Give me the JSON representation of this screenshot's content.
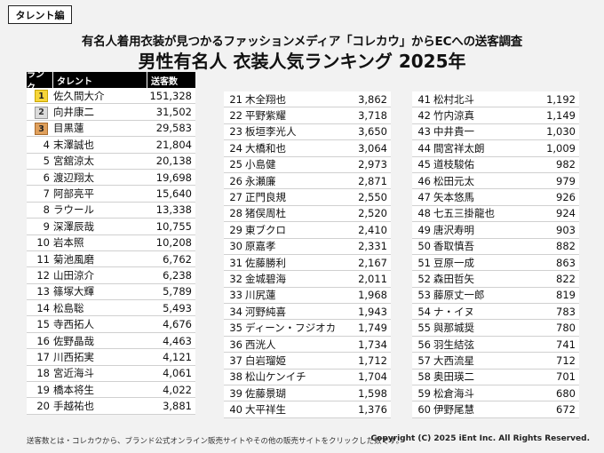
{
  "tag": "タレント編",
  "subtitle": "有名人着用衣装が見つかるファッションメディア「コレカウ」からECへの送客調査",
  "title": "男性有名人 衣装人気ランキング 2025年",
  "header": {
    "rank": "ランク",
    "name": "タレント",
    "count": "送客数"
  },
  "col1": [
    {
      "rank": "1",
      "name": "佐久間大介",
      "count": "151,328"
    },
    {
      "rank": "2",
      "name": "向井康二",
      "count": "31,502"
    },
    {
      "rank": "3",
      "name": "目黒蓮",
      "count": "29,583"
    },
    {
      "rank": "4",
      "name": "末澤誠也",
      "count": "21,804"
    },
    {
      "rank": "5",
      "name": "宮舘涼太",
      "count": "20,138"
    },
    {
      "rank": "6",
      "name": "渡辺翔太",
      "count": "19,698"
    },
    {
      "rank": "7",
      "name": "阿部亮平",
      "count": "15,640"
    },
    {
      "rank": "8",
      "name": "ラウール",
      "count": "13,338"
    },
    {
      "rank": "9",
      "name": "深澤辰哉",
      "count": "10,755"
    },
    {
      "rank": "10",
      "name": "岩本照",
      "count": "10,208"
    },
    {
      "rank": "11",
      "name": "菊池風磨",
      "count": "6,762"
    },
    {
      "rank": "12",
      "name": "山田涼介",
      "count": "6,238"
    },
    {
      "rank": "13",
      "name": "篠塚大輝",
      "count": "5,789"
    },
    {
      "rank": "14",
      "name": "松島聡",
      "count": "5,493"
    },
    {
      "rank": "15",
      "name": "寺西拓人",
      "count": "4,676"
    },
    {
      "rank": "16",
      "name": "佐野晶哉",
      "count": "4,463"
    },
    {
      "rank": "17",
      "name": "川西拓実",
      "count": "4,121"
    },
    {
      "rank": "18",
      "name": "宮近海斗",
      "count": "4,061"
    },
    {
      "rank": "19",
      "name": "橋本将生",
      "count": "4,022"
    },
    {
      "rank": "20",
      "name": "手越祐也",
      "count": "3,881"
    }
  ],
  "col2": [
    {
      "rank": "21",
      "name": "木全翔也",
      "count": "3,862"
    },
    {
      "rank": "22",
      "name": "平野紫耀",
      "count": "3,718"
    },
    {
      "rank": "23",
      "name": "板垣李光人",
      "count": "3,650"
    },
    {
      "rank": "24",
      "name": "大橋和也",
      "count": "3,064"
    },
    {
      "rank": "25",
      "name": "小島健",
      "count": "2,973"
    },
    {
      "rank": "26",
      "name": "永瀬廉",
      "count": "2,871"
    },
    {
      "rank": "27",
      "name": "正門良規",
      "count": "2,550"
    },
    {
      "rank": "28",
      "name": "猪俣周杜",
      "count": "2,520"
    },
    {
      "rank": "29",
      "name": "東ブクロ",
      "count": "2,410"
    },
    {
      "rank": "30",
      "name": "原嘉孝",
      "count": "2,331"
    },
    {
      "rank": "31",
      "name": "佐藤勝利",
      "count": "2,167"
    },
    {
      "rank": "32",
      "name": "金城碧海",
      "count": "2,011"
    },
    {
      "rank": "33",
      "name": "川尻蓮",
      "count": "1,968"
    },
    {
      "rank": "34",
      "name": "河野純喜",
      "count": "1,943"
    },
    {
      "rank": "35",
      "name": "ディーン・フジオカ",
      "count": "1,749"
    },
    {
      "rank": "36",
      "name": "西洸人",
      "count": "1,734"
    },
    {
      "rank": "37",
      "name": "白岩瑠姫",
      "count": "1,712"
    },
    {
      "rank": "38",
      "name": "松山ケンイチ",
      "count": "1,704"
    },
    {
      "rank": "39",
      "name": "佐藤景瑚",
      "count": "1,598"
    },
    {
      "rank": "40",
      "name": "大平祥生",
      "count": "1,376"
    }
  ],
  "col3": [
    {
      "rank": "41",
      "name": "松村北斗",
      "count": "1,192"
    },
    {
      "rank": "42",
      "name": "竹内涼真",
      "count": "1,149"
    },
    {
      "rank": "43",
      "name": "中井貴一",
      "count": "1,030"
    },
    {
      "rank": "44",
      "name": "間宮祥太朗",
      "count": "1,009"
    },
    {
      "rank": "45",
      "name": "道枝駿佑",
      "count": "982"
    },
    {
      "rank": "46",
      "name": "松田元太",
      "count": "979"
    },
    {
      "rank": "47",
      "name": "矢本悠馬",
      "count": "926"
    },
    {
      "rank": "48",
      "name": "七五三掛龍也",
      "count": "924"
    },
    {
      "rank": "49",
      "name": "唐沢寿明",
      "count": "903"
    },
    {
      "rank": "50",
      "name": "香取慎吾",
      "count": "882"
    },
    {
      "rank": "51",
      "name": "豆原一成",
      "count": "863"
    },
    {
      "rank": "52",
      "name": "森田哲矢",
      "count": "822"
    },
    {
      "rank": "53",
      "name": "藤原丈一郎",
      "count": "819"
    },
    {
      "rank": "54",
      "name": "ナ・イヌ",
      "count": "783"
    },
    {
      "rank": "55",
      "name": "與那城奨",
      "count": "780"
    },
    {
      "rank": "56",
      "name": "羽生結弦",
      "count": "741"
    },
    {
      "rank": "57",
      "name": "大西流星",
      "count": "712"
    },
    {
      "rank": "58",
      "name": "奥田瑛二",
      "count": "701"
    },
    {
      "rank": "59",
      "name": "松倉海斗",
      "count": "680"
    },
    {
      "rank": "60",
      "name": "伊野尾慧",
      "count": "672"
    }
  ],
  "footer_note": "送客数とは・コレカウから、ブランド公式オンライン販売サイトやその他の販売サイトをクリックした数です。",
  "copyright": "Copyright (C) 2025 iEnt Inc. All Rights Reserved.",
  "colors": {
    "gold": "#f6d53a",
    "silver": "#dcdcdc",
    "bronze": "#e0a05c",
    "header_bg": "#000000"
  }
}
